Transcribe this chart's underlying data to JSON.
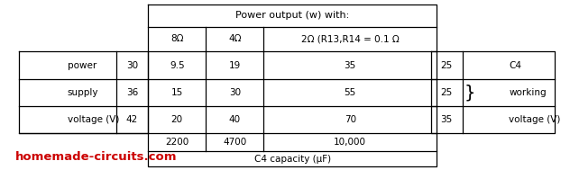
{
  "title": "Power output (w) with:",
  "col_headers": [
    "8Ω",
    "4Ω",
    "2Ω (R13,R14 = 0.1 Ω"
  ],
  "row_label_parts": [
    "power",
    "supply",
    "voltage (V)"
  ],
  "row_voltages": [
    "30",
    "36",
    "42"
  ],
  "data": [
    [
      "9.5",
      "19",
      "35"
    ],
    [
      "15",
      "30",
      "55"
    ],
    [
      "20",
      "40",
      "70"
    ]
  ],
  "c4_voltages": [
    "25",
    "25",
    "35"
  ],
  "c4_labels": [
    "C4",
    "working",
    "voltage (V)"
  ],
  "bottom_vals": [
    "2200",
    "4700",
    "10,000"
  ],
  "bottom_label": "C4 capacity (μF)",
  "watermark": "homemade-circuits.com",
  "watermark_color": "#cc0000",
  "bg_color": "#ffffff",
  "line_color": "#000000",
  "fs": 7.5,
  "fs_title": 8.0,
  "fs_wm": 9.5
}
